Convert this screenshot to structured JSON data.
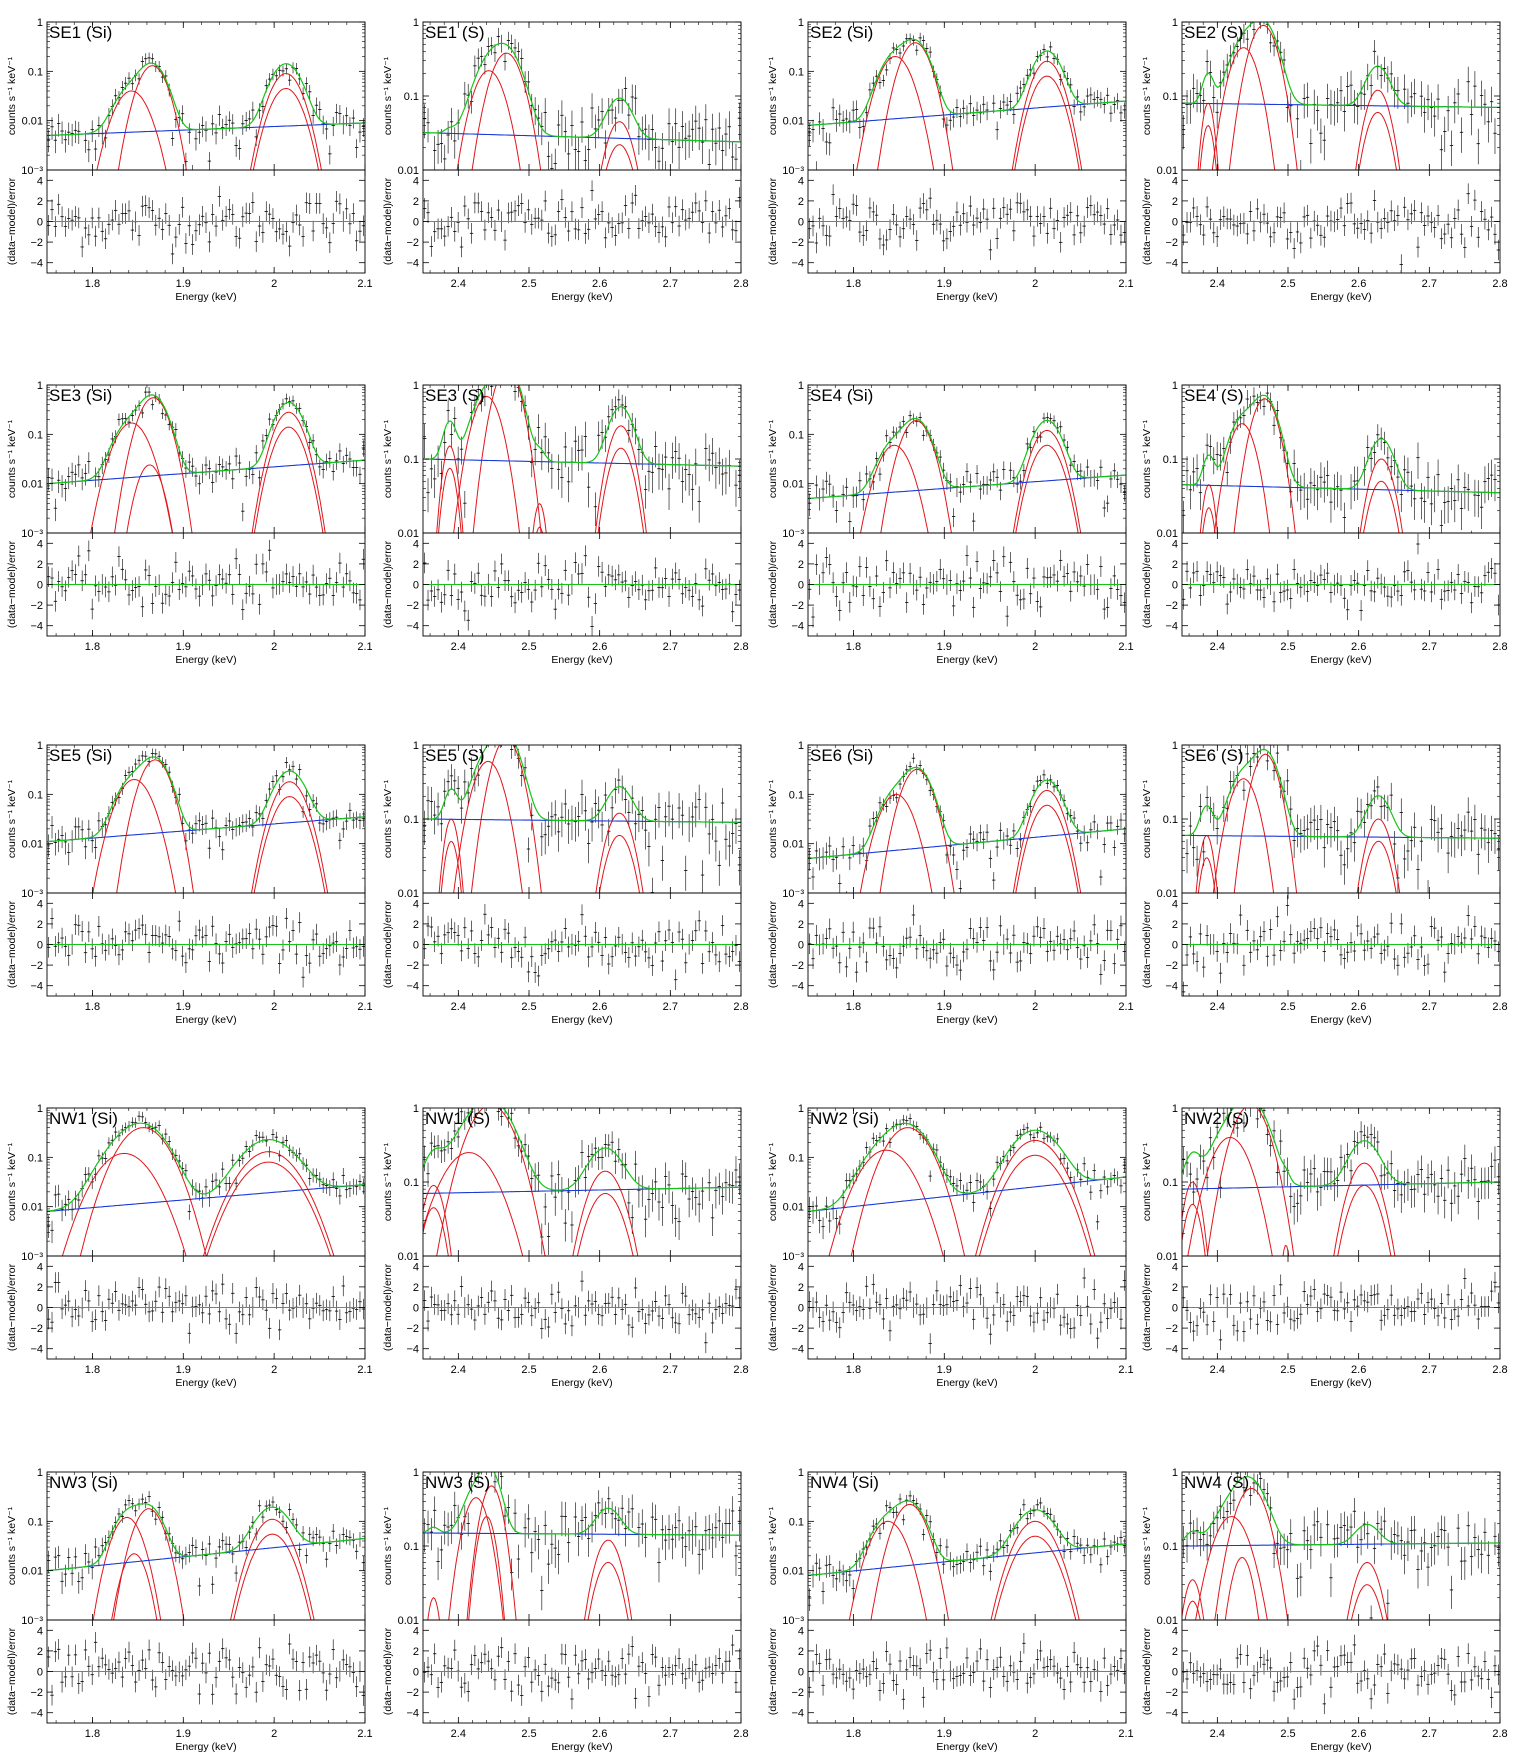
{
  "common": {
    "y_label_top": "counts s⁻¹ keV⁻¹",
    "y_label_bottom": "(data−model)/error",
    "x_label": "Energy (keV)",
    "colors": {
      "data": "#000000",
      "gauss": "#e0161b",
      "cont": "#1c3ad8",
      "total": "#16c416",
      "zero": "#16c416"
    }
  },
  "axes": {
    "si": {
      "xlim": [
        1.75,
        2.1
      ],
      "xticks": [
        "1.8",
        "1.9",
        "2",
        "2.1"
      ],
      "xtick_values": [
        1.8,
        1.9,
        2.0,
        2.1
      ],
      "ylim": [
        0.001,
        1
      ],
      "yticks": [
        "10⁻³",
        "0.01",
        "0.1",
        "1"
      ],
      "ytick_values": [
        0.001,
        0.01,
        0.1,
        1
      ]
    },
    "s": {
      "xlim": [
        2.35,
        2.8
      ],
      "xticks": [
        "2.4",
        "2.5",
        "2.6",
        "2.7",
        "2.8"
      ],
      "xtick_values": [
        2.4,
        2.5,
        2.6,
        2.7,
        2.8
      ],
      "ylim": [
        0.01,
        1
      ],
      "yticks": [
        "0.01",
        "0.1",
        "1"
      ],
      "ytick_values": [
        0.01,
        0.1,
        1
      ]
    },
    "resid": {
      "ylim": [
        -5,
        5
      ],
      "yticks": [
        "4",
        "2",
        "0",
        "−2",
        "−4"
      ],
      "ytick_values": [
        4,
        2,
        0,
        -2,
        -4
      ]
    }
  },
  "chart_data": [
    {
      "type": "line",
      "title": "SE1 (Si)",
      "band": "si",
      "cont": [
        0.005,
        0.009
      ],
      "lines": [
        {
          "e": 1.843,
          "s": 0.014,
          "a": 0.04
        },
        {
          "e": 1.866,
          "s": 0.012,
          "a": 0.13
        },
        {
          "e": 2.013,
          "s": 0.013,
          "a": 0.09
        },
        {
          "e": 2.013,
          "s": 0.013,
          "a": 0.045
        }
      ]
    },
    {
      "type": "line",
      "title": "SE1 (S)",
      "band": "s",
      "cont": [
        0.032,
        0.024
      ],
      "lines": [
        {
          "e": 2.388,
          "s": 0.007,
          "a": 0.003
        },
        {
          "e": 2.388,
          "s": 0.007,
          "a": 0.0015
        },
        {
          "e": 2.443,
          "s": 0.018,
          "a": 0.22
        },
        {
          "e": 2.468,
          "s": 0.018,
          "a": 0.38
        },
        {
          "e": 2.628,
          "s": 0.015,
          "a": 0.045
        },
        {
          "e": 2.628,
          "s": 0.015,
          "a": 0.022
        }
      ]
    },
    {
      "type": "line",
      "title": "SE2 (Si)",
      "band": "si",
      "cont": [
        0.008,
        0.025
      ],
      "lines": [
        {
          "e": 1.846,
          "s": 0.013,
          "a": 0.2
        },
        {
          "e": 1.868,
          "s": 0.012,
          "a": 0.38
        },
        {
          "e": 2.013,
          "s": 0.012,
          "a": 0.16
        },
        {
          "e": 2.013,
          "s": 0.012,
          "a": 0.08
        }
      ]
    },
    {
      "type": "line",
      "title": "SE2 (S)",
      "band": "s",
      "cont": [
        0.08,
        0.07
      ],
      "lines": [
        {
          "e": 2.387,
          "s": 0.007,
          "a": 0.08
        },
        {
          "e": 2.387,
          "s": 0.007,
          "a": 0.04
        },
        {
          "e": 2.437,
          "s": 0.016,
          "a": 0.45
        },
        {
          "e": 2.465,
          "s": 0.016,
          "a": 0.9
        },
        {
          "e": 2.627,
          "s": 0.014,
          "a": 0.12
        },
        {
          "e": 2.627,
          "s": 0.014,
          "a": 0.06
        }
      ]
    },
    {
      "type": "line",
      "title": "SE3 (Si)",
      "band": "si",
      "cont": [
        0.01,
        0.03
      ],
      "lines": [
        {
          "e": 1.843,
          "s": 0.014,
          "a": 0.17
        },
        {
          "e": 1.867,
          "s": 0.012,
          "a": 0.55
        },
        {
          "e": 1.863,
          "s": 0.01,
          "a": 0.024
        },
        {
          "e": 2.016,
          "s": 0.012,
          "a": 0.28
        },
        {
          "e": 2.016,
          "s": 0.012,
          "a": 0.14
        }
      ]
    },
    {
      "type": "line",
      "title": "SE3 (S)",
      "band": "s",
      "cont": [
        0.1,
        0.08
      ],
      "lines": [
        {
          "e": 2.388,
          "s": 0.008,
          "a": 0.15
        },
        {
          "e": 2.388,
          "s": 0.008,
          "a": 0.075
        },
        {
          "e": 2.44,
          "s": 0.016,
          "a": 0.7
        },
        {
          "e": 2.469,
          "s": 0.015,
          "a": 1.7
        },
        {
          "e": 2.515,
          "s": 0.007,
          "a": 0.025
        },
        {
          "e": 2.515,
          "s": 0.007,
          "a": 0.012
        },
        {
          "e": 2.63,
          "s": 0.014,
          "a": 0.28
        },
        {
          "e": 2.63,
          "s": 0.014,
          "a": 0.14
        }
      ]
    },
    {
      "type": "line",
      "title": "SE4 (Si)",
      "band": "si",
      "cont": [
        0.005,
        0.015
      ],
      "lines": [
        {
          "e": 1.845,
          "s": 0.013,
          "a": 0.06
        },
        {
          "e": 1.869,
          "s": 0.012,
          "a": 0.19
        },
        {
          "e": 2.013,
          "s": 0.012,
          "a": 0.12
        },
        {
          "e": 2.013,
          "s": 0.012,
          "a": 0.06
        }
      ]
    },
    {
      "type": "line",
      "title": "SE4 (S)",
      "band": "s",
      "cont": [
        0.045,
        0.035
      ],
      "lines": [
        {
          "e": 2.388,
          "s": 0.007,
          "a": 0.045
        },
        {
          "e": 2.388,
          "s": 0.007,
          "a": 0.022
        },
        {
          "e": 2.435,
          "s": 0.015,
          "a": 0.3
        },
        {
          "e": 2.467,
          "s": 0.015,
          "a": 0.65
        },
        {
          "e": 2.632,
          "s": 0.014,
          "a": 0.1
        },
        {
          "e": 2.632,
          "s": 0.014,
          "a": 0.05
        }
      ]
    },
    {
      "type": "line",
      "title": "SE5 (Si)",
      "band": "si",
      "cont": [
        0.011,
        0.035
      ],
      "lines": [
        {
          "e": 1.846,
          "s": 0.014,
          "a": 0.2
        },
        {
          "e": 1.869,
          "s": 0.012,
          "a": 0.5
        },
        {
          "e": 2.017,
          "s": 0.013,
          "a": 0.18
        },
        {
          "e": 2.017,
          "s": 0.013,
          "a": 0.09
        }
      ]
    },
    {
      "type": "line",
      "title": "SE5 (S)",
      "band": "s",
      "cont": [
        0.1,
        0.09
      ],
      "lines": [
        {
          "e": 2.39,
          "s": 0.008,
          "a": 0.1
        },
        {
          "e": 2.39,
          "s": 0.008,
          "a": 0.05
        },
        {
          "e": 2.442,
          "s": 0.017,
          "a": 0.6
        },
        {
          "e": 2.468,
          "s": 0.016,
          "a": 1.2
        },
        {
          "e": 2.628,
          "s": 0.015,
          "a": 0.12
        },
        {
          "e": 2.628,
          "s": 0.015,
          "a": 0.06
        }
      ]
    },
    {
      "type": "line",
      "title": "SE6 (Si)",
      "band": "si",
      "cont": [
        0.005,
        0.02
      ],
      "lines": [
        {
          "e": 1.847,
          "s": 0.013,
          "a": 0.1
        },
        {
          "e": 1.87,
          "s": 0.012,
          "a": 0.32
        },
        {
          "e": 2.013,
          "s": 0.012,
          "a": 0.12
        },
        {
          "e": 2.013,
          "s": 0.012,
          "a": 0.06
        }
      ]
    },
    {
      "type": "line",
      "title": "SE6 (S)",
      "band": "s",
      "cont": [
        0.06,
        0.055
      ],
      "lines": [
        {
          "e": 2.385,
          "s": 0.008,
          "a": 0.06
        },
        {
          "e": 2.385,
          "s": 0.008,
          "a": 0.03
        },
        {
          "e": 2.437,
          "s": 0.016,
          "a": 0.35
        },
        {
          "e": 2.468,
          "s": 0.015,
          "a": 0.75
        },
        {
          "e": 2.628,
          "s": 0.014,
          "a": 0.1
        },
        {
          "e": 2.628,
          "s": 0.014,
          "a": 0.05
        }
      ]
    },
    {
      "type": "line",
      "title": "NW1 (Si)",
      "band": "si",
      "cont": [
        0.008,
        0.028
      ],
      "lines": [
        {
          "e": 1.835,
          "s": 0.022,
          "a": 0.12
        },
        {
          "e": 1.856,
          "s": 0.02,
          "a": 0.4
        },
        {
          "e": 1.994,
          "s": 0.023,
          "a": 0.13
        },
        {
          "e": 1.994,
          "s": 0.023,
          "a": 0.08
        }
      ]
    },
    {
      "type": "line",
      "title": "NW1 (S)",
      "band": "s",
      "cont": [
        0.07,
        0.085
      ],
      "lines": [
        {
          "e": 2.365,
          "s": 0.012,
          "a": 0.09
        },
        {
          "e": 2.365,
          "s": 0.012,
          "a": 0.045
        },
        {
          "e": 2.415,
          "s": 0.03,
          "a": 0.25
        },
        {
          "e": 2.446,
          "s": 0.025,
          "a": 1.1
        },
        {
          "e": 2.608,
          "s": 0.02,
          "a": 0.14
        },
        {
          "e": 2.608,
          "s": 0.02,
          "a": 0.07
        }
      ]
    },
    {
      "type": "line",
      "title": "NW2 (Si)",
      "band": "si",
      "cont": [
        0.008,
        0.04
      ],
      "lines": [
        {
          "e": 1.836,
          "s": 0.02,
          "a": 0.14
        },
        {
          "e": 1.86,
          "s": 0.018,
          "a": 0.4
        },
        {
          "e": 2.0,
          "s": 0.02,
          "a": 0.22
        },
        {
          "e": 2.0,
          "s": 0.02,
          "a": 0.11
        }
      ]
    },
    {
      "type": "line",
      "title": "NW2 (S)",
      "band": "s",
      "cont": [
        0.08,
        0.1
      ],
      "lines": [
        {
          "e": 2.365,
          "s": 0.01,
          "a": 0.1
        },
        {
          "e": 2.365,
          "s": 0.01,
          "a": 0.05
        },
        {
          "e": 2.418,
          "s": 0.022,
          "a": 0.4
        },
        {
          "e": 2.447,
          "s": 0.02,
          "a": 1.1
        },
        {
          "e": 2.497,
          "s": 0.005,
          "a": 0.014
        },
        {
          "e": 2.497,
          "s": 0.005,
          "a": 0.007
        },
        {
          "e": 2.608,
          "s": 0.018,
          "a": 0.18
        },
        {
          "e": 2.608,
          "s": 0.018,
          "a": 0.09
        }
      ]
    },
    {
      "type": "line",
      "title": "NW3 (Si)",
      "band": "si",
      "cont": [
        0.01,
        0.045
      ],
      "lines": [
        {
          "e": 1.838,
          "s": 0.012,
          "a": 0.12
        },
        {
          "e": 1.862,
          "s": 0.012,
          "a": 0.18
        },
        {
          "e": 1.846,
          "s": 0.01,
          "a": 0.022
        },
        {
          "e": 1.998,
          "s": 0.015,
          "a": 0.11
        },
        {
          "e": 1.998,
          "s": 0.015,
          "a": 0.055
        }
      ]
    },
    {
      "type": "line",
      "title": "NW3 (S)",
      "band": "s",
      "cont": [
        0.15,
        0.14
      ],
      "lines": [
        {
          "e": 2.365,
          "s": 0.007,
          "a": 0.02
        },
        {
          "e": 2.365,
          "s": 0.007,
          "a": 0.01
        },
        {
          "e": 2.425,
          "s": 0.014,
          "a": 0.45
        },
        {
          "e": 2.447,
          "s": 0.012,
          "a": 0.65
        },
        {
          "e": 2.44,
          "s": 0.01,
          "a": 0.25
        },
        {
          "e": 2.612,
          "s": 0.015,
          "a": 0.12
        },
        {
          "e": 2.612,
          "s": 0.015,
          "a": 0.06
        }
      ]
    },
    {
      "type": "line",
      "title": "NW4 (Si)",
      "band": "si",
      "cont": [
        0.008,
        0.035
      ],
      "lines": [
        {
          "e": 1.838,
          "s": 0.014,
          "a": 0.1
        },
        {
          "e": 1.862,
          "s": 0.013,
          "a": 0.22
        },
        {
          "e": 2.0,
          "s": 0.016,
          "a": 0.1
        },
        {
          "e": 2.0,
          "s": 0.016,
          "a": 0.05
        }
      ]
    },
    {
      "type": "line",
      "title": "NW4 (S)",
      "band": "s",
      "cont": [
        0.1,
        0.11
      ],
      "lines": [
        {
          "e": 2.365,
          "s": 0.01,
          "a": 0.035
        },
        {
          "e": 2.365,
          "s": 0.01,
          "a": 0.018
        },
        {
          "e": 2.42,
          "s": 0.02,
          "a": 0.25
        },
        {
          "e": 2.448,
          "s": 0.018,
          "a": 0.6
        },
        {
          "e": 2.435,
          "s": 0.012,
          "a": 0.07
        },
        {
          "e": 2.612,
          "s": 0.015,
          "a": 0.06
        },
        {
          "e": 2.612,
          "s": 0.015,
          "a": 0.03
        }
      ]
    }
  ]
}
